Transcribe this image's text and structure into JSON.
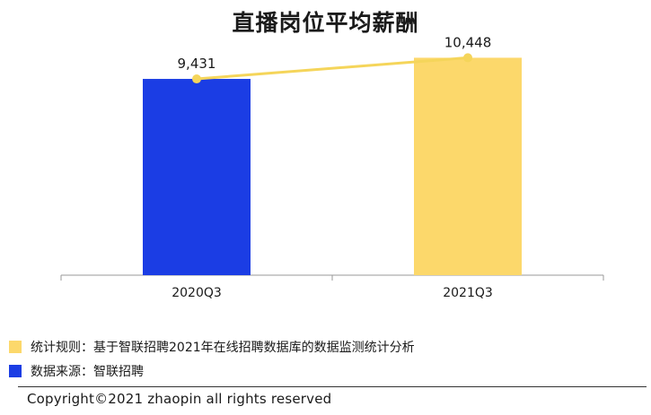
{
  "chart_data": {
    "type": "bar",
    "title": "直播岗位平均薪酬",
    "categories": [
      "2020Q3",
      "2021Q3"
    ],
    "values": [
      9431,
      10448
    ],
    "value_labels": [
      "9,431",
      "10,448"
    ],
    "bar_colors": [
      "#1b3de4",
      "#fcd86b"
    ],
    "line_color": "#f5d55a",
    "overlay": "line",
    "ylim": [
      0,
      11500
    ],
    "grid": false,
    "legend_position": "bottom-left"
  },
  "legend": [
    {
      "color": "#fcd86b",
      "text": "统计规则：基于智联招聘2021年在线招聘数据库的数据监测统计分析"
    },
    {
      "color": "#1b3de4",
      "text": "数据来源：智联招聘"
    }
  ],
  "footer": {
    "copyright": "Copyright©2021 zhaopin all rights reserved"
  }
}
